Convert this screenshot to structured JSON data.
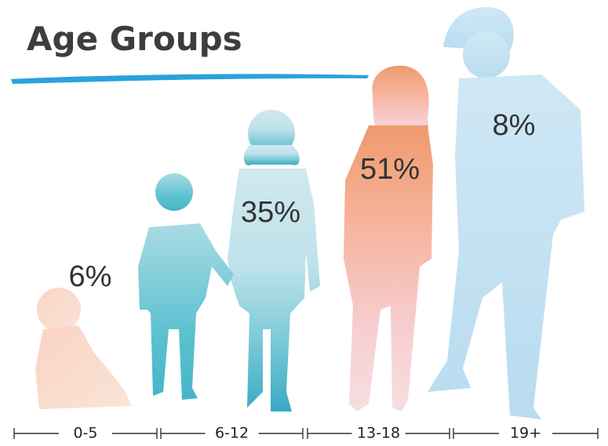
{
  "title": "Age Groups",
  "groups": [
    {
      "label": "0-5",
      "value": "6%"
    },
    {
      "label": "6-12",
      "value": "35%"
    },
    {
      "label": "13-18",
      "value": "51%"
    },
    {
      "label": "19+",
      "value": "8%"
    }
  ]
}
